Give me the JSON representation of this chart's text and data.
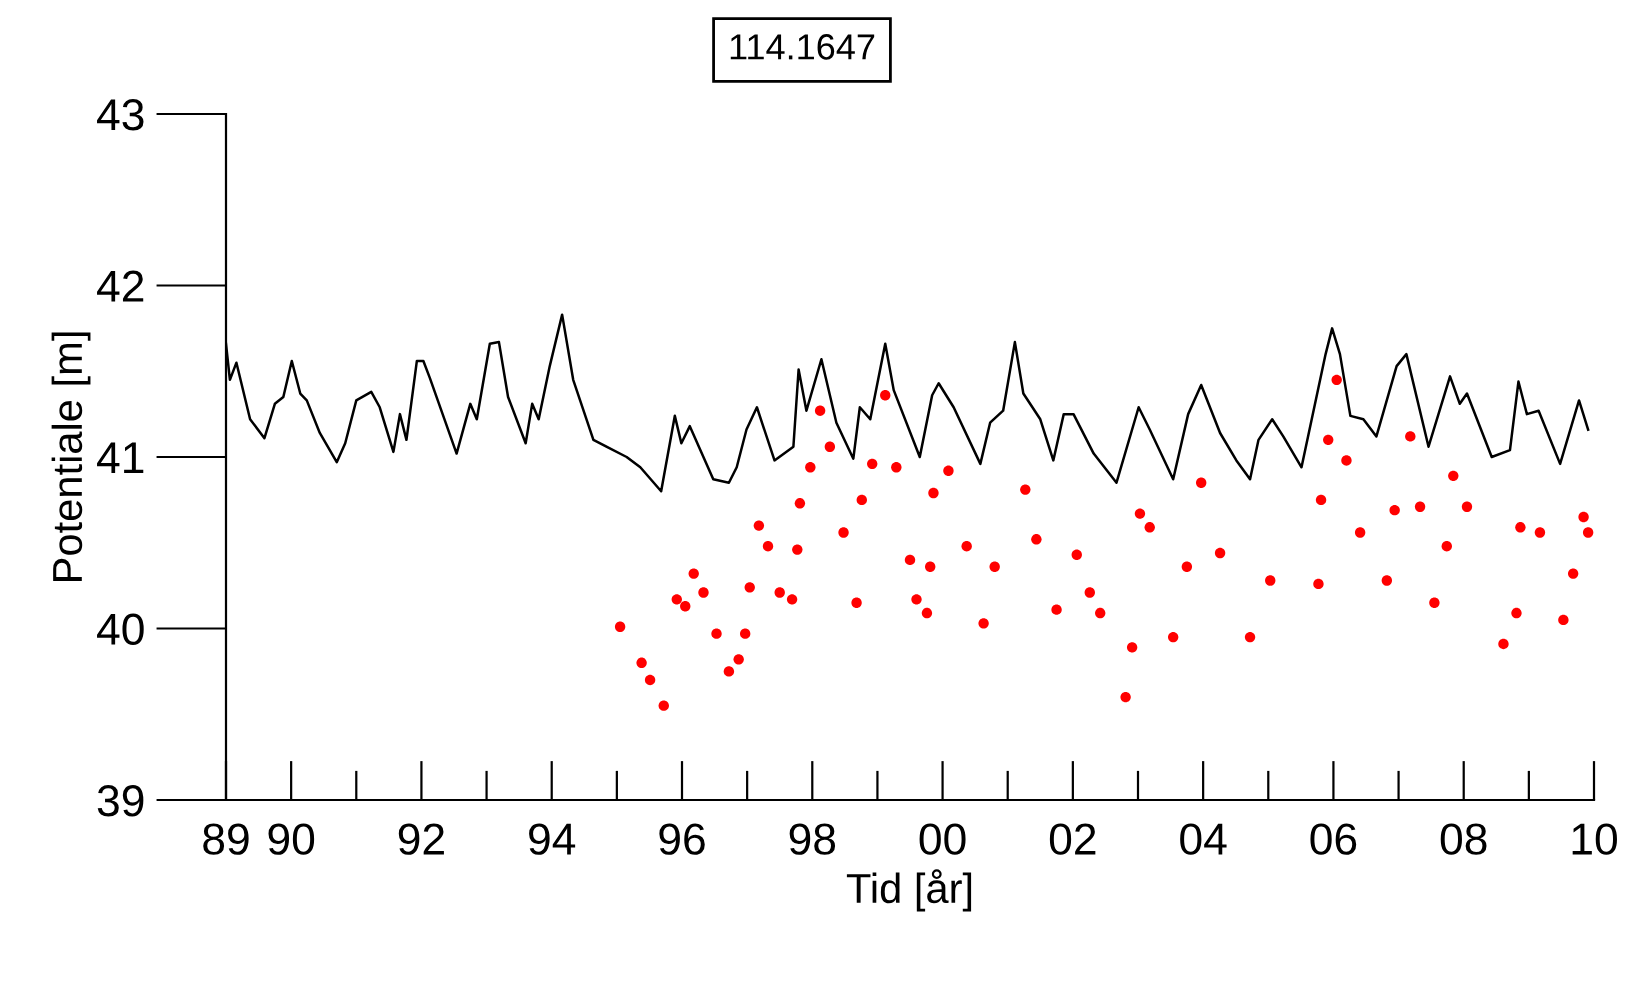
{
  "chart_data": {
    "type": "line",
    "title": "114.1647",
    "xlabel": "Tid [år]",
    "ylabel": "Potentiale [m]",
    "xlim": [
      1989,
      2010
    ],
    "ylim": [
      39,
      43
    ],
    "yticks": [
      39,
      40,
      41,
      42,
      43
    ],
    "xticks": [
      {
        "value": 1989,
        "label": "89"
      },
      {
        "value": 1990,
        "label": "90"
      },
      {
        "value": 1991,
        "label": null
      },
      {
        "value": 1992,
        "label": "92"
      },
      {
        "value": 1993,
        "label": null
      },
      {
        "value": 1994,
        "label": "94"
      },
      {
        "value": 1995,
        "label": null
      },
      {
        "value": 1996,
        "label": "96"
      },
      {
        "value": 1997,
        "label": null
      },
      {
        "value": 1998,
        "label": "98"
      },
      {
        "value": 1999,
        "label": null
      },
      {
        "value": 2000,
        "label": "00"
      },
      {
        "value": 2001,
        "label": null
      },
      {
        "value": 2002,
        "label": "02"
      },
      {
        "value": 2003,
        "label": null
      },
      {
        "value": 2004,
        "label": "04"
      },
      {
        "value": 2005,
        "label": null
      },
      {
        "value": 2006,
        "label": "06"
      },
      {
        "value": 2007,
        "label": null
      },
      {
        "value": 2008,
        "label": "08"
      },
      {
        "value": 2009,
        "label": null
      },
      {
        "value": 2010,
        "label": "10"
      }
    ],
    "grid": false,
    "legend": false,
    "series": [
      {
        "type": "line",
        "color": "#000000",
        "marker": "none",
        "line_style": "solid",
        "x": [
          1989.0,
          1989.06,
          1989.16,
          1989.37,
          1989.59,
          1989.75,
          1989.88,
          1990.01,
          1990.14,
          1990.24,
          1990.44,
          1990.7,
          1990.83,
          1991.0,
          1991.23,
          1991.36,
          1991.57,
          1991.67,
          1991.77,
          1991.93,
          1992.03,
          1992.13,
          1992.54,
          1992.75,
          1992.85,
          1993.05,
          1993.19,
          1993.33,
          1993.6,
          1993.7,
          1993.8,
          1993.97,
          1994.16,
          1994.33,
          1994.64,
          1994.84,
          1995.15,
          1995.36,
          1995.68,
          1995.89,
          1995.99,
          1996.12,
          1996.48,
          1996.72,
          1996.84,
          1996.99,
          1997.15,
          1997.42,
          1997.71,
          1997.79,
          1997.91,
          1998.14,
          1998.37,
          1998.63,
          1998.73,
          1998.89,
          1999.12,
          1999.25,
          1999.65,
          1999.84,
          1999.94,
          2000.17,
          2000.58,
          2000.73,
          2000.93,
          2001.11,
          2001.24,
          2001.5,
          2001.7,
          2001.86,
          2002.01,
          2002.32,
          2002.67,
          2003.01,
          2003.18,
          2003.54,
          2003.77,
          2003.97,
          2004.26,
          2004.51,
          2004.72,
          2004.85,
          2005.06,
          2005.23,
          2005.51,
          2005.88,
          2005.98,
          2006.1,
          2006.26,
          2006.46,
          2006.66,
          2006.97,
          2007.12,
          2007.46,
          2007.79,
          2007.94,
          2008.05,
          2008.43,
          2008.71,
          2008.84,
          2008.97,
          2009.15,
          2009.48,
          2009.77,
          2009.91
        ],
        "values": [
          41.66,
          41.45,
          41.55,
          41.22,
          41.11,
          41.31,
          41.35,
          41.56,
          41.37,
          41.33,
          41.14,
          40.97,
          41.08,
          41.33,
          41.38,
          41.29,
          41.03,
          41.25,
          41.1,
          41.56,
          41.56,
          41.46,
          41.02,
          41.31,
          41.22,
          41.66,
          41.67,
          41.35,
          41.08,
          41.31,
          41.22,
          41.53,
          41.83,
          41.45,
          41.1,
          41.06,
          41.0,
          40.94,
          40.8,
          41.24,
          41.08,
          41.18,
          40.87,
          40.85,
          40.94,
          41.16,
          41.29,
          40.98,
          41.06,
          41.51,
          41.27,
          41.57,
          41.2,
          40.99,
          41.29,
          41.22,
          41.66,
          41.39,
          41.0,
          41.36,
          41.43,
          41.29,
          40.96,
          41.2,
          41.27,
          41.67,
          41.37,
          41.22,
          40.98,
          41.25,
          41.25,
          41.02,
          40.85,
          41.29,
          41.16,
          40.87,
          41.25,
          41.42,
          41.14,
          40.98,
          40.87,
          41.1,
          41.22,
          41.12,
          40.94,
          41.6,
          41.75,
          41.6,
          41.24,
          41.22,
          41.12,
          41.53,
          41.6,
          41.06,
          41.47,
          41.31,
          41.37,
          41.0,
          41.04,
          41.44,
          41.25,
          41.27,
          40.96,
          41.33,
          41.16
        ]
      },
      {
        "type": "scatter",
        "color": "#ff0000",
        "marker": "circle",
        "x": [
          1995.05,
          1995.38,
          1995.51,
          1995.72,
          1995.92,
          1996.05,
          1996.18,
          1996.33,
          1996.53,
          1996.72,
          1996.87,
          1996.97,
          1997.04,
          1997.18,
          1997.32,
          1997.5,
          1997.69,
          1997.77,
          1997.81,
          1997.97,
          1998.12,
          1998.27,
          1998.48,
          1998.68,
          1998.76,
          1998.92,
          1999.12,
          1999.29,
          1999.5,
          1999.6,
          1999.76,
          1999.81,
          1999.86,
          2000.09,
          2000.37,
          2000.63,
          2000.8,
          2001.27,
          2001.44,
          2001.75,
          2002.06,
          2002.26,
          2002.42,
          2002.81,
          2002.91,
          2003.03,
          2003.18,
          2003.54,
          2003.75,
          2003.97,
          2004.26,
          2004.72,
          2005.03,
          2005.77,
          2005.81,
          2005.92,
          2006.05,
          2006.2,
          2006.41,
          2006.82,
          2006.94,
          2007.18,
          2007.33,
          2007.55,
          2007.74,
          2007.84,
          2008.05,
          2008.61,
          2008.81,
          2008.87,
          2009.17,
          2009.53,
          2009.68,
          2009.84,
          2009.91
        ],
        "values": [
          40.01,
          39.8,
          39.7,
          39.55,
          40.17,
          40.13,
          40.32,
          40.21,
          39.97,
          39.75,
          39.82,
          39.97,
          40.24,
          40.6,
          40.48,
          40.21,
          40.17,
          40.46,
          40.73,
          40.94,
          41.27,
          41.06,
          40.56,
          40.15,
          40.75,
          40.96,
          41.36,
          40.94,
          40.4,
          40.17,
          40.09,
          40.36,
          40.79,
          40.92,
          40.48,
          40.03,
          40.36,
          40.81,
          40.52,
          40.11,
          40.43,
          40.21,
          40.09,
          39.6,
          39.89,
          40.67,
          40.59,
          39.95,
          40.36,
          40.85,
          40.44,
          39.95,
          40.28,
          40.26,
          40.75,
          41.1,
          41.45,
          40.98,
          40.56,
          40.28,
          40.69,
          41.12,
          40.71,
          40.15,
          40.48,
          40.89,
          40.71,
          39.91,
          40.09,
          40.59,
          40.56,
          40.05,
          40.32,
          40.65,
          40.56
        ]
      }
    ]
  }
}
